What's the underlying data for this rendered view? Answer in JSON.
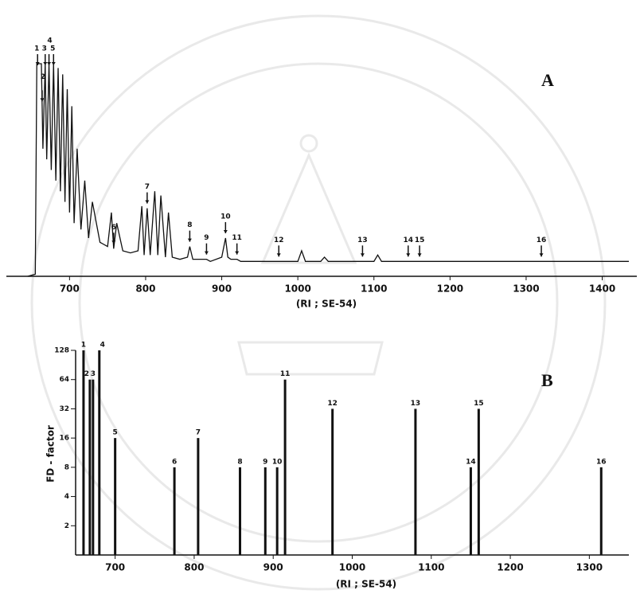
{
  "chart_data": [
    {
      "type": "line",
      "panel_label": "A",
      "x_label": "(RI ; SE-54)",
      "color": "#111111",
      "x": [
        645,
        655,
        657,
        660,
        663,
        665,
        668,
        670,
        673,
        676,
        679,
        682,
        685,
        688,
        691,
        694,
        697,
        700,
        703,
        706,
        710,
        715,
        720,
        725,
        730,
        740,
        750,
        755,
        758,
        762,
        770,
        780,
        790,
        795,
        798,
        802,
        806,
        812,
        816,
        820,
        826,
        830,
        835,
        845,
        855,
        858,
        862,
        875,
        880,
        885,
        900,
        905,
        908,
        912,
        920,
        925,
        930,
        960,
        975,
        980,
        1000,
        1005,
        1010,
        1030,
        1035,
        1040,
        1080,
        1100,
        1105,
        1110,
        1200,
        1300,
        1435
      ],
      "values": [
        0,
        1,
        100,
        100,
        100,
        60,
        100,
        55,
        100,
        50,
        100,
        45,
        98,
        40,
        95,
        35,
        88,
        30,
        80,
        25,
        60,
        22,
        45,
        18,
        35,
        16,
        14,
        30,
        13,
        25,
        12,
        11,
        12,
        33,
        10,
        32,
        10,
        40,
        10,
        38,
        9,
        30,
        9,
        8,
        9,
        14,
        8,
        8,
        8,
        7,
        9,
        18,
        9,
        8,
        8,
        7,
        7,
        7,
        7,
        7,
        7,
        12,
        7,
        7,
        9,
        7,
        7,
        7,
        10,
        7,
        7,
        7,
        7
      ],
      "xlim": [
        640,
        1435
      ],
      "ylim": [
        0,
        100
      ],
      "xticks": [
        700,
        800,
        900,
        1000,
        1100,
        1200,
        1300,
        1400
      ],
      "peaks": [
        {
          "label": "1",
          "x": 658
        },
        {
          "label": "2",
          "x": 664
        },
        {
          "label": "3",
          "x": 668
        },
        {
          "label": "4",
          "x": 673
        },
        {
          "label": "5",
          "x": 679
        },
        {
          "label": "6",
          "x": 758
        },
        {
          "label": "7",
          "x": 802
        },
        {
          "label": "8",
          "x": 858
        },
        {
          "label": "9",
          "x": 880
        },
        {
          "label": "10",
          "x": 905
        },
        {
          "label": "11",
          "x": 920
        },
        {
          "label": "12",
          "x": 975
        },
        {
          "label": "13",
          "x": 1085
        },
        {
          "label": "14",
          "x": 1145
        },
        {
          "label": "15",
          "x": 1160
        },
        {
          "label": "16",
          "x": 1320
        }
      ]
    },
    {
      "type": "bar",
      "panel_label": "B",
      "x_label": "(RI ; SE-54)",
      "y_label": "FD - factor",
      "color": "#111111",
      "labels": [
        "1",
        "2",
        "3",
        "4",
        "5",
        "6",
        "7",
        "8",
        "9",
        "10",
        "11",
        "12",
        "13",
        "14",
        "15",
        "16"
      ],
      "x": [
        660,
        668,
        672,
        680,
        700,
        775,
        805,
        858,
        890,
        905,
        915,
        975,
        1080,
        1150,
        1160,
        1315
      ],
      "values": [
        128,
        64,
        64,
        128,
        16,
        8,
        16,
        8,
        8,
        8,
        64,
        32,
        32,
        8,
        32,
        8
      ],
      "xlim": [
        650,
        1350
      ],
      "ylim": [
        1,
        128
      ],
      "log_scale": true,
      "xticks": [
        700,
        800,
        900,
        1000,
        1100,
        1200,
        1300
      ],
      "yticks": [
        2,
        4,
        8,
        16,
        32,
        64,
        128
      ]
    }
  ]
}
